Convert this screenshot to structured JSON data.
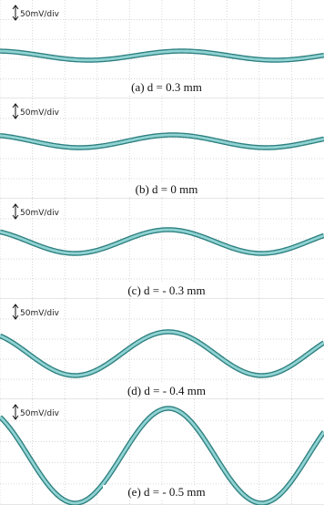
{
  "panels": [
    {
      "scale": "50mV/div",
      "caption": "(a) d = 0.3 mm"
    },
    {
      "scale": "50mV/div",
      "caption": "(b) d = 0 mm"
    },
    {
      "scale": "50mV/div",
      "caption": "(c) d = - 0.3 mm"
    },
    {
      "scale": "50mV/div",
      "caption": "(d) d = - 0.4 mm"
    },
    {
      "scale": "50mV/div",
      "caption": "(e) d = - 0.5 mm"
    }
  ]
}
